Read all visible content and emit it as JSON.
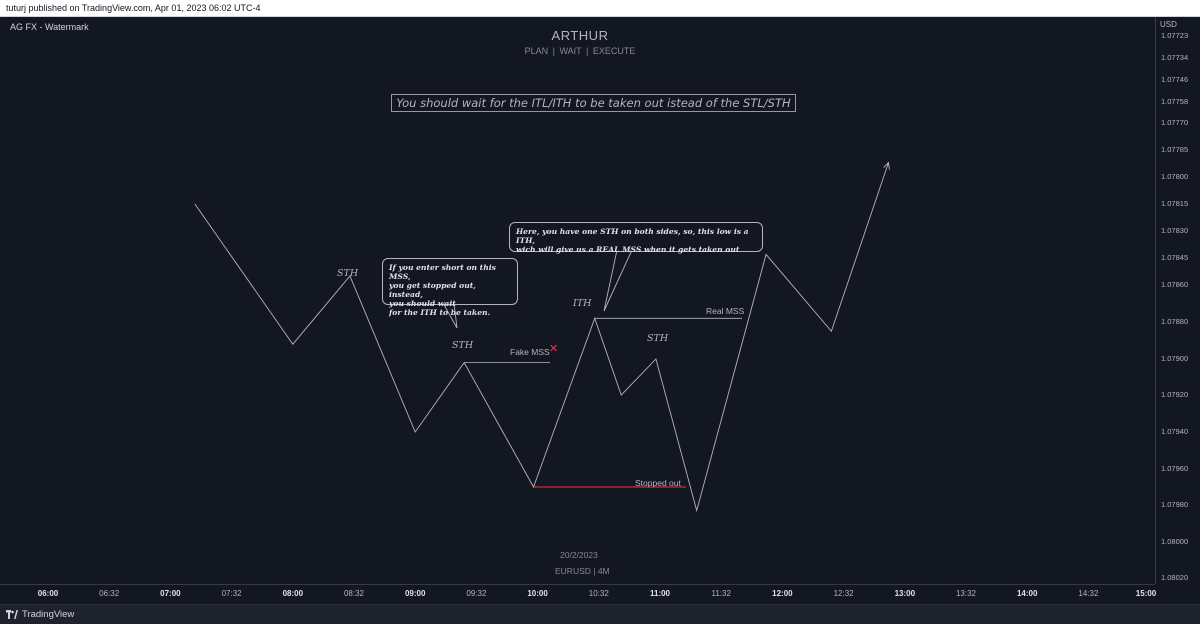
{
  "header": {
    "published_text": "tuturj published on TradingView.com, Apr 01, 2023 06:02 UTC-4"
  },
  "chart_title": {
    "main": "ARTHUR",
    "sub": "PLAN  |  WAIT  |  EXECUTE"
  },
  "symbol_label": "AG FX - Watermark",
  "headline": "You should wait for the ITL/ITH to be taken out istead of the STL/STH",
  "callouts": {
    "left": "If you enter short on this MSS,\nyou get stopped out, instead,\nyou should wait\nfor the ITH to be taken.",
    "right": "Here, you have one STH on both sides, so, this low is a ITH,\nwich will give us a REAL MSS when it gets taken out"
  },
  "labels": {
    "sth1": "STH",
    "sth2": "STH",
    "ith": "ITH",
    "sth3": "STH",
    "fake_mss": "Fake MSS",
    "fake_mark": "✕",
    "real_mss": "Real MSS",
    "stopped_out": "Stopped out"
  },
  "bottom": {
    "date": "20/2/2023",
    "symbol": "EURUSD | 4M"
  },
  "footer": {
    "brand": "TradingView"
  },
  "colors": {
    "background": "#131722",
    "line": "#b2b5be",
    "stop_line": "#f23645",
    "fake_mark": "#f23645"
  },
  "icons": {
    "logo": "tradingview-logo-icon",
    "arrow": "arrow-up-right-icon"
  },
  "chart_data": {
    "type": "line",
    "price_axis": {
      "unit": "USD",
      "inverted": true,
      "ticks": [
        "1.07723",
        "1.07734",
        "1.07746",
        "1.07758",
        "1.07770",
        "1.07785",
        "1.07800",
        "1.07815",
        "1.07830",
        "1.07845",
        "1.07860",
        "1.07880",
        "1.07900",
        "1.07920",
        "1.07940",
        "1.07960",
        "1.07980",
        "1.08000",
        "1.08020"
      ]
    },
    "time_axis": {
      "ticks": [
        {
          "label": "06:00",
          "major": true
        },
        {
          "label": "06:32",
          "major": false
        },
        {
          "label": "07:00",
          "major": true
        },
        {
          "label": "07:32",
          "major": false
        },
        {
          "label": "08:00",
          "major": true
        },
        {
          "label": "08:32",
          "major": false
        },
        {
          "label": "09:00",
          "major": true
        },
        {
          "label": "09:32",
          "major": false
        },
        {
          "label": "10:00",
          "major": true
        },
        {
          "label": "10:32",
          "major": false
        },
        {
          "label": "11:00",
          "major": true
        },
        {
          "label": "11:32",
          "major": false
        },
        {
          "label": "12:00",
          "major": true
        },
        {
          "label": "12:32",
          "major": false
        },
        {
          "label": "13:00",
          "major": true
        },
        {
          "label": "13:32",
          "major": false
        },
        {
          "label": "14:00",
          "major": true
        },
        {
          "label": "14:32",
          "major": false
        },
        {
          "label": "15:00",
          "major": true
        }
      ]
    },
    "series": [
      {
        "name": "",
        "points": [
          {
            "t": "07:12",
            "price": 1.07815
          },
          {
            "t": "08:00",
            "price": 1.07892
          },
          {
            "t": "08:28",
            "price": 1.07855
          },
          {
            "t": "09:00",
            "price": 1.0794
          },
          {
            "t": "09:24",
            "price": 1.07902
          },
          {
            "t": "09:58",
            "price": 1.0797
          },
          {
            "t": "10:28",
            "price": 1.07878
          },
          {
            "t": "10:41",
            "price": 1.0792
          },
          {
            "t": "10:58",
            "price": 1.079
          },
          {
            "t": "11:18",
            "price": 1.07983
          },
          {
            "t": "11:52",
            "price": 1.07843
          },
          {
            "t": "12:24",
            "price": 1.07885
          },
          {
            "t": "12:52",
            "price": 1.07792
          }
        ]
      }
    ],
    "levels": [
      {
        "label": "Fake MSS",
        "price": 1.07902
      },
      {
        "label": "Real MSS",
        "price": 1.07878
      },
      {
        "label": "Stopped out",
        "price": 1.0797
      }
    ]
  }
}
